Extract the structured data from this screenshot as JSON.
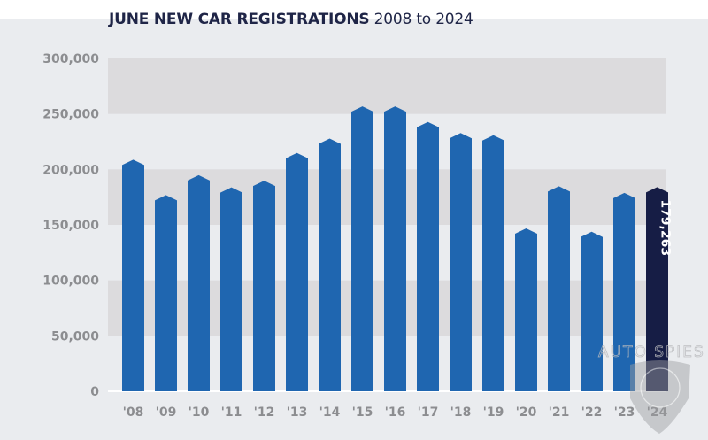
{
  "chart_data": {
    "type": "bar",
    "title": "JUNE NEW CAR REGISTRATIONS",
    "subtitle": "2008 to 2024",
    "xlabel": "",
    "ylabel": "",
    "ylim": [
      0,
      300000
    ],
    "yticks": [
      0,
      50000,
      100000,
      150000,
      200000,
      250000,
      300000
    ],
    "ytick_labels": [
      "0",
      "50,000",
      "100,000",
      "150,000",
      "200,000",
      "250,000",
      "300,000"
    ],
    "grid": "alternating horizontal bands",
    "categories": [
      "'08",
      "'09",
      "'10",
      "'11",
      "'12",
      "'13",
      "'14",
      "'15",
      "'16",
      "'17",
      "'18",
      "'19",
      "'20",
      "'21",
      "'22",
      "'23",
      "'24"
    ],
    "values": [
      204000,
      172000,
      190000,
      179000,
      185000,
      210000,
      223000,
      252000,
      252000,
      238000,
      228000,
      226000,
      142000,
      180000,
      139000,
      174000,
      179263
    ],
    "highlight": {
      "index": 16,
      "label": "179,263"
    },
    "colors": {
      "bar": "#1f66b0",
      "highlight": "#161d45",
      "band": "#dcdbdd",
      "background": "#eaecef"
    }
  },
  "watermark": {
    "text": "AUTO SPIES"
  }
}
